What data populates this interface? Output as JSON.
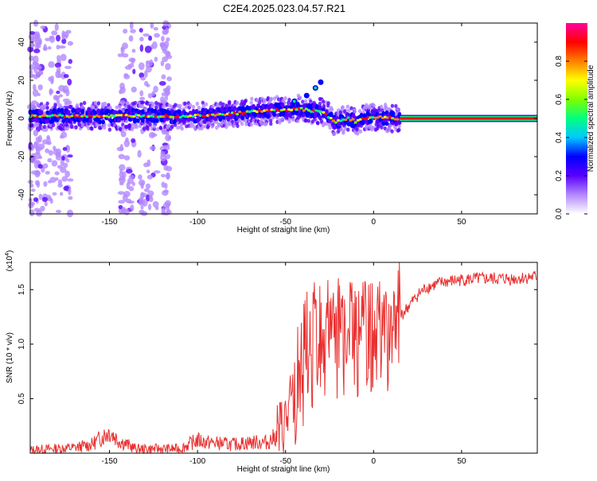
{
  "title": "C2E4.2025.023.04.57.R21",
  "chart_data": [
    {
      "type": "heatmap",
      "xlabel": "Height of straight line (km)",
      "ylabel": "Frequency (Hz)",
      "xlim": [
        -195,
        93
      ],
      "ylim": [
        -50,
        50
      ],
      "xticks": [
        -150,
        -100,
        -50,
        0,
        50
      ],
      "yticks": [
        -40,
        -20,
        0,
        20,
        40
      ],
      "ridge": [
        [
          -195,
          1
        ],
        [
          -170,
          1.5
        ],
        [
          -150,
          1
        ],
        [
          -130,
          1.5
        ],
        [
          -110,
          1
        ],
        [
          -90,
          2
        ],
        [
          -75,
          3
        ],
        [
          -60,
          4
        ],
        [
          -50,
          4.5
        ],
        [
          -42,
          5
        ],
        [
          -35,
          4
        ],
        [
          -28,
          3
        ],
        [
          -22,
          -2
        ],
        [
          -15,
          0
        ],
        [
          -10,
          -1.5
        ],
        [
          -5,
          0
        ],
        [
          0,
          1
        ],
        [
          8,
          0
        ],
        [
          15,
          0
        ],
        [
          93,
          0
        ]
      ],
      "branch": [
        [
          -55,
          7
        ],
        [
          -45,
          9
        ],
        [
          -38,
          12
        ],
        [
          -33,
          16
        ],
        [
          -30,
          19
        ]
      ],
      "colorbar": {
        "label": "Normalized spectral amplitude",
        "ticks": [
          0.0,
          0.2,
          0.4,
          0.6,
          0.8
        ],
        "tick_labels": [
          "0.0",
          "0.2",
          "0.4",
          "0.6",
          "0.8"
        ],
        "colors": [
          "#ffffff",
          "#b388ff",
          "#5a00ff",
          "#0000ff",
          "#00c8ff",
          "#00ff80",
          "#80ff00",
          "#ffff00",
          "#ff8000",
          "#ff0000",
          "#ff00a0"
        ]
      }
    },
    {
      "type": "line",
      "xlabel": "Height of straight line (km)",
      "ylabel": "SNR (10 * v/v)",
      "multiplier": "(x10",
      "multiplier_exp": "4",
      "multiplier_close": ")",
      "xlim": [
        -195,
        93
      ],
      "ylim": [
        0,
        1.75
      ],
      "xticks": [
        -150,
        -100,
        -50,
        0,
        50
      ],
      "yticks": [
        0.5,
        1.0,
        1.5
      ],
      "ytick_labels": [
        "0.5",
        "1.0",
        "1.5"
      ],
      "color": "#e8302f",
      "envelope": [
        [
          -195,
          0.03
        ],
        [
          -170,
          0.05
        ],
        [
          -160,
          0.08
        ],
        [
          -150,
          0.2
        ],
        [
          -145,
          0.12
        ],
        [
          -135,
          0.04
        ],
        [
          -110,
          0.04
        ],
        [
          -100,
          0.12
        ],
        [
          -95,
          0.1
        ],
        [
          -80,
          0.08
        ],
        [
          -70,
          0.1
        ],
        [
          -60,
          0.1
        ],
        [
          -52,
          0.2
        ],
        [
          -45,
          0.5
        ],
        [
          -40,
          0.8
        ],
        [
          -35,
          1.0
        ],
        [
          -30,
          1.05
        ],
        [
          -25,
          1.1
        ],
        [
          -20,
          1.1
        ],
        [
          -15,
          1.0
        ],
        [
          -10,
          1.05
        ],
        [
          -5,
          1.05
        ],
        [
          0,
          1.05
        ],
        [
          5,
          1.1
        ],
        [
          10,
          1.15
        ],
        [
          15,
          1.25
        ],
        [
          20,
          1.35
        ],
        [
          25,
          1.45
        ],
        [
          30,
          1.52
        ],
        [
          40,
          1.57
        ],
        [
          50,
          1.59
        ],
        [
          60,
          1.6
        ],
        [
          70,
          1.6
        ],
        [
          80,
          1.6
        ],
        [
          93,
          1.62
        ]
      ]
    }
  ]
}
